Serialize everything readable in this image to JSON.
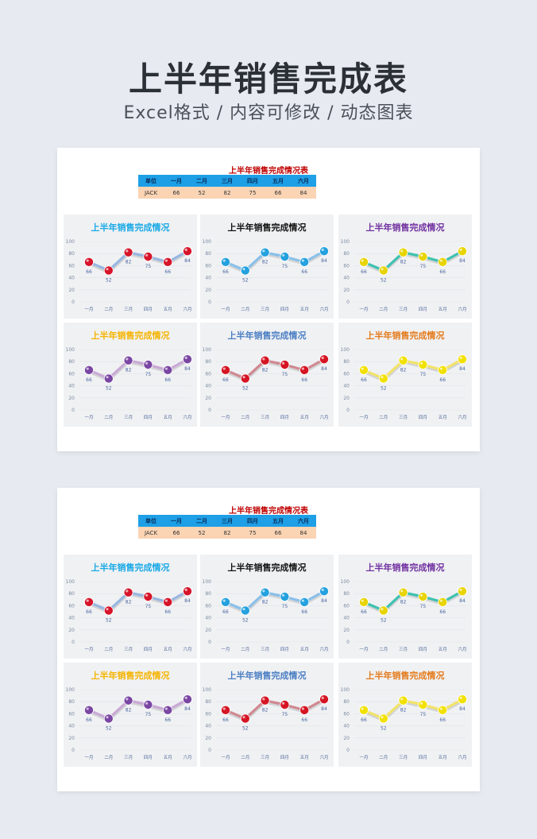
{
  "header": {
    "title": "上半年销售完成表",
    "subtitle": "Excel格式 / 内容可修改 / 动态图表"
  },
  "sheet": {
    "title": "上半年销售完成情况表",
    "table": {
      "headers": [
        "单位",
        "一月",
        "二月",
        "三月",
        "四月",
        "五月",
        "六月"
      ],
      "row": [
        "JACK",
        "66",
        "52",
        "82",
        "75",
        "66",
        "84"
      ]
    }
  },
  "chart_data": {
    "type": "line",
    "title": "上半年销售完成情况",
    "categories": [
      "一月",
      "二月",
      "三月",
      "四月",
      "五月",
      "六月"
    ],
    "values": [
      66,
      52,
      82,
      75,
      66,
      84
    ],
    "ylim": [
      0,
      100
    ],
    "yticks": [
      0,
      20,
      40,
      60,
      80,
      100
    ],
    "chart_styles": [
      {
        "title_color": "#19a9e6",
        "line": "#97b7e1",
        "marker": "#d6142a"
      },
      {
        "title_color": "#111111",
        "line": "#89c0ea",
        "marker": "#24a1de"
      },
      {
        "title_color": "#7030a0",
        "line": "#3ec1b0",
        "marker": "#e8d400"
      },
      {
        "title_color": "#f5b400",
        "line": "#c9a9d6",
        "marker": "#7a46a3"
      },
      {
        "title_color": "#4a7ec3",
        "line": "#d08890",
        "marker": "#d51524"
      },
      {
        "title_color": "#e37b1c",
        "line": "#f1e36a",
        "marker": "#f2e100"
      }
    ]
  }
}
